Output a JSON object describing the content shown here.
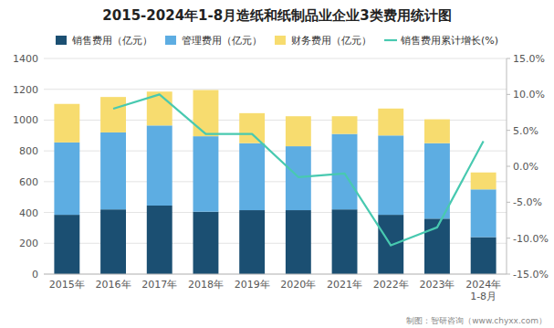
{
  "chart_data": {
    "type": "bar",
    "title": "2015-2024年1-8月造纸和纸制品业企业3类费用统计图",
    "categories": [
      "2015年",
      "2016年",
      "2017年",
      "2018年",
      "2019年",
      "2020年",
      "2021年",
      "2022年",
      "2023年",
      "2024年\n1-8月"
    ],
    "stacked": true,
    "series": [
      {
        "name": "销售费用（亿元）",
        "color": "#1b4f72",
        "values": [
          385,
          420,
          445,
          405,
          415,
          415,
          420,
          385,
          360,
          240
        ]
      },
      {
        "name": "管理费用（亿元）",
        "color": "#5dade2",
        "values": [
          470,
          500,
          520,
          490,
          435,
          415,
          490,
          515,
          490,
          310
        ]
      },
      {
        "name": "财务费用（亿元）",
        "color": "#f7dc6f",
        "values": [
          250,
          230,
          220,
          300,
          195,
          195,
          115,
          175,
          155,
          110
        ]
      },
      {
        "name": "销售费用累计增长(%)",
        "type": "line",
        "axis": "y2",
        "color": "#48c9b0",
        "values": [
          null,
          8.0,
          10.0,
          4.5,
          4.5,
          -1.5,
          -1.0,
          -11.0,
          -8.5,
          3.5
        ]
      }
    ],
    "ylim": [
      0,
      1400
    ],
    "yticks": [
      0,
      200,
      400,
      600,
      800,
      1000,
      1200,
      1400
    ],
    "y2lim": [
      -15.0,
      15.0
    ],
    "y2ticks": [
      {
        "value": -15.0,
        "label": "-15.0%"
      },
      {
        "value": -10.0,
        "label": "-10.0%"
      },
      {
        "value": -5.0,
        "label": "-5.0%"
      },
      {
        "value": 0.0,
        "label": "0.0%"
      },
      {
        "value": 5.0,
        "label": "5.0%"
      },
      {
        "value": 10.0,
        "label": "10.0%"
      },
      {
        "value": 15.0,
        "label": "15.0%"
      }
    ],
    "grid": true,
    "legend": "top",
    "annotations": [
      "制图：智研咨询（www.chyxx.com）"
    ]
  }
}
